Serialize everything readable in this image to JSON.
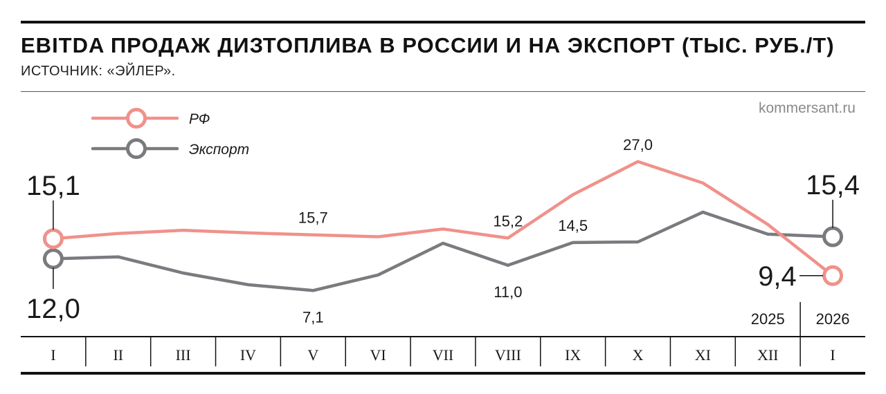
{
  "header": {
    "title": "EBITDA ПРОДАЖ ДИЗТОПЛИВА В РОССИИ И НА ЭКСПОРТ (ТЫС. РУБ./Т)",
    "source": "ИСТОЧНИК: «ЭЙЛЕР».",
    "site": "kommersant.ru"
  },
  "colors": {
    "rf": "#f0918a",
    "export": "#7a7a7f",
    "rule": "#111111"
  },
  "chart_data": {
    "type": "line",
    "categories": [
      "I",
      "II",
      "III",
      "IV",
      "V",
      "VI",
      "VII",
      "VIII",
      "IX",
      "X",
      "XI",
      "XII",
      "I"
    ],
    "years": [
      {
        "label": "2025",
        "start": 0,
        "end": 11
      },
      {
        "label": "2026",
        "start": 12,
        "end": 12
      }
    ],
    "series": [
      {
        "name": "РФ",
        "values": [
          15.1,
          15.9,
          16.4,
          16.0,
          15.7,
          15.4,
          16.6,
          15.2,
          21.9,
          27.0,
          23.7,
          17.3,
          9.4
        ],
        "labels": {
          "0": "15,1",
          "4": "15,7",
          "7": "15,2",
          "9": "27,0",
          "12": "9,4"
        }
      },
      {
        "name": "Экспорт",
        "values": [
          12.0,
          12.3,
          9.8,
          8.0,
          7.1,
          9.5,
          14.4,
          11.0,
          14.5,
          14.6,
          19.2,
          15.8,
          15.4
        ],
        "labels": {
          "0": "12,0",
          "4": "7,1",
          "7": "11,0",
          "8": "14,5",
          "12": "15,4"
        }
      }
    ],
    "ylim": [
      0,
      30
    ],
    "grid": false,
    "legend": "top-left"
  }
}
